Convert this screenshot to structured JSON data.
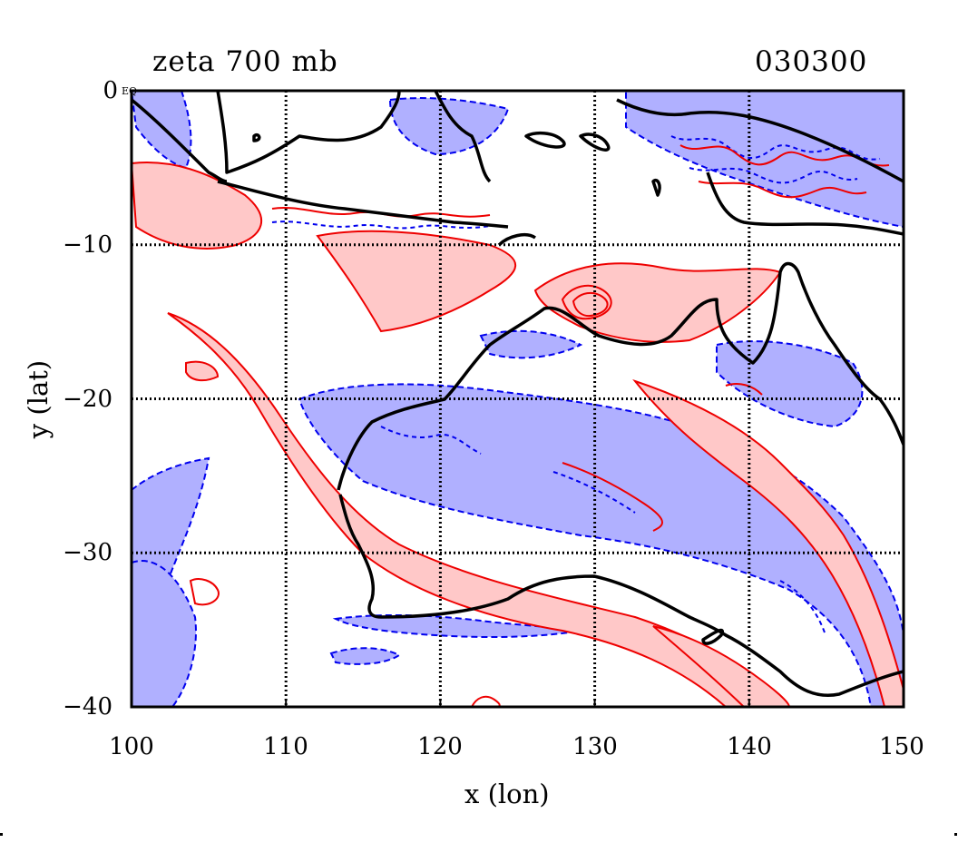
{
  "title": "zeta 700 mb",
  "timestamp": "030300",
  "axes": {
    "xlabel": "x (lon)",
    "ylabel": "y (lat)",
    "xticks": [
      "100",
      "110",
      "120",
      "130",
      "140",
      "150"
    ],
    "yticks": [
      "0",
      "−10",
      "−20",
      "−30",
      "−40"
    ],
    "corner_tag": "EQ"
  },
  "map_data": {
    "type": "contour",
    "variable": "relative vorticity",
    "level_mb": 700,
    "xlim": [
      100,
      150
    ],
    "ylim": [
      -40,
      0
    ],
    "grid": true,
    "colors": {
      "positive_fill": "#ffc8c8",
      "positive_line": "#ee0000",
      "negative_fill": "#b0b0ff",
      "negative_line": "#0000ee",
      "coastline": "#000000"
    }
  }
}
